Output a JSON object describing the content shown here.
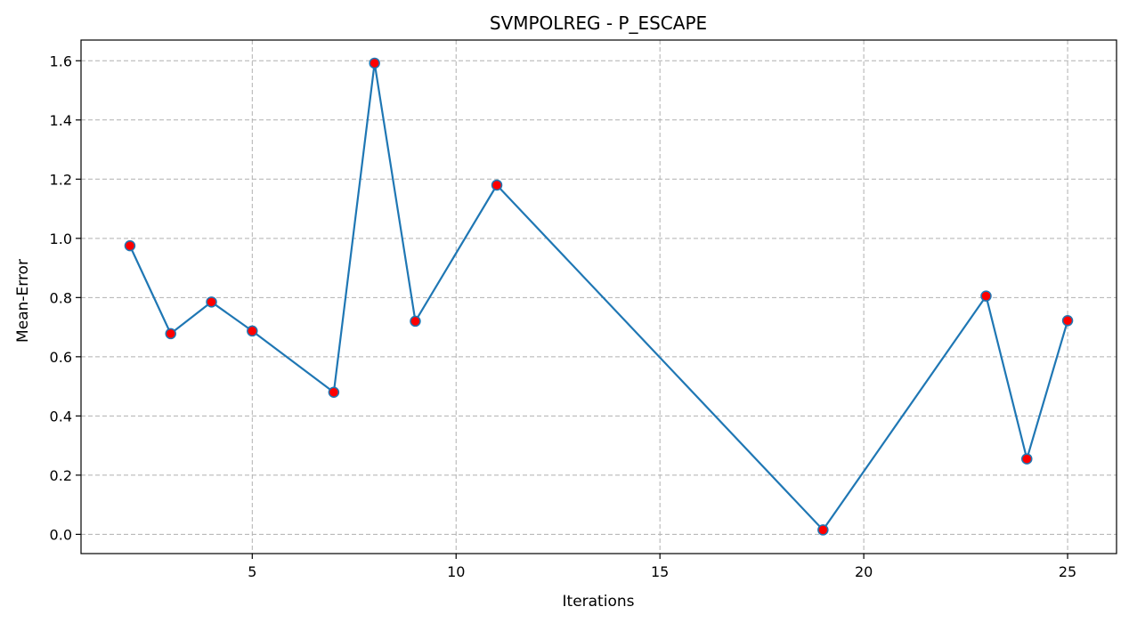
{
  "chart_data": {
    "type": "line",
    "title": "SVMPOLREG - P_ESCAPE",
    "xlabel": "Iterations",
    "ylabel": "Mean-Error",
    "xlim": [
      0.8,
      26.2
    ],
    "ylim": [
      -0.065,
      1.67
    ],
    "xticks": [
      5,
      10,
      15,
      20,
      25
    ],
    "yticks": [
      0.0,
      0.2,
      0.4,
      0.6,
      0.8,
      1.0,
      1.2,
      1.4,
      1.6
    ],
    "ytick_labels": [
      "0.0",
      "0.2",
      "0.4",
      "0.6",
      "0.8",
      "1.0",
      "1.2",
      "1.4",
      "1.6"
    ],
    "grid": true,
    "series": [
      {
        "x": [
          2,
          3,
          4,
          5,
          7,
          8,
          9,
          11,
          19,
          23,
          24,
          25
        ],
        "y": [
          0.975,
          0.678,
          0.785,
          0.687,
          0.48,
          1.592,
          0.72,
          1.18,
          0.015,
          0.805,
          0.255,
          0.722
        ],
        "line_color": "#1f77b4",
        "marker_color": "#ff0000"
      }
    ]
  }
}
